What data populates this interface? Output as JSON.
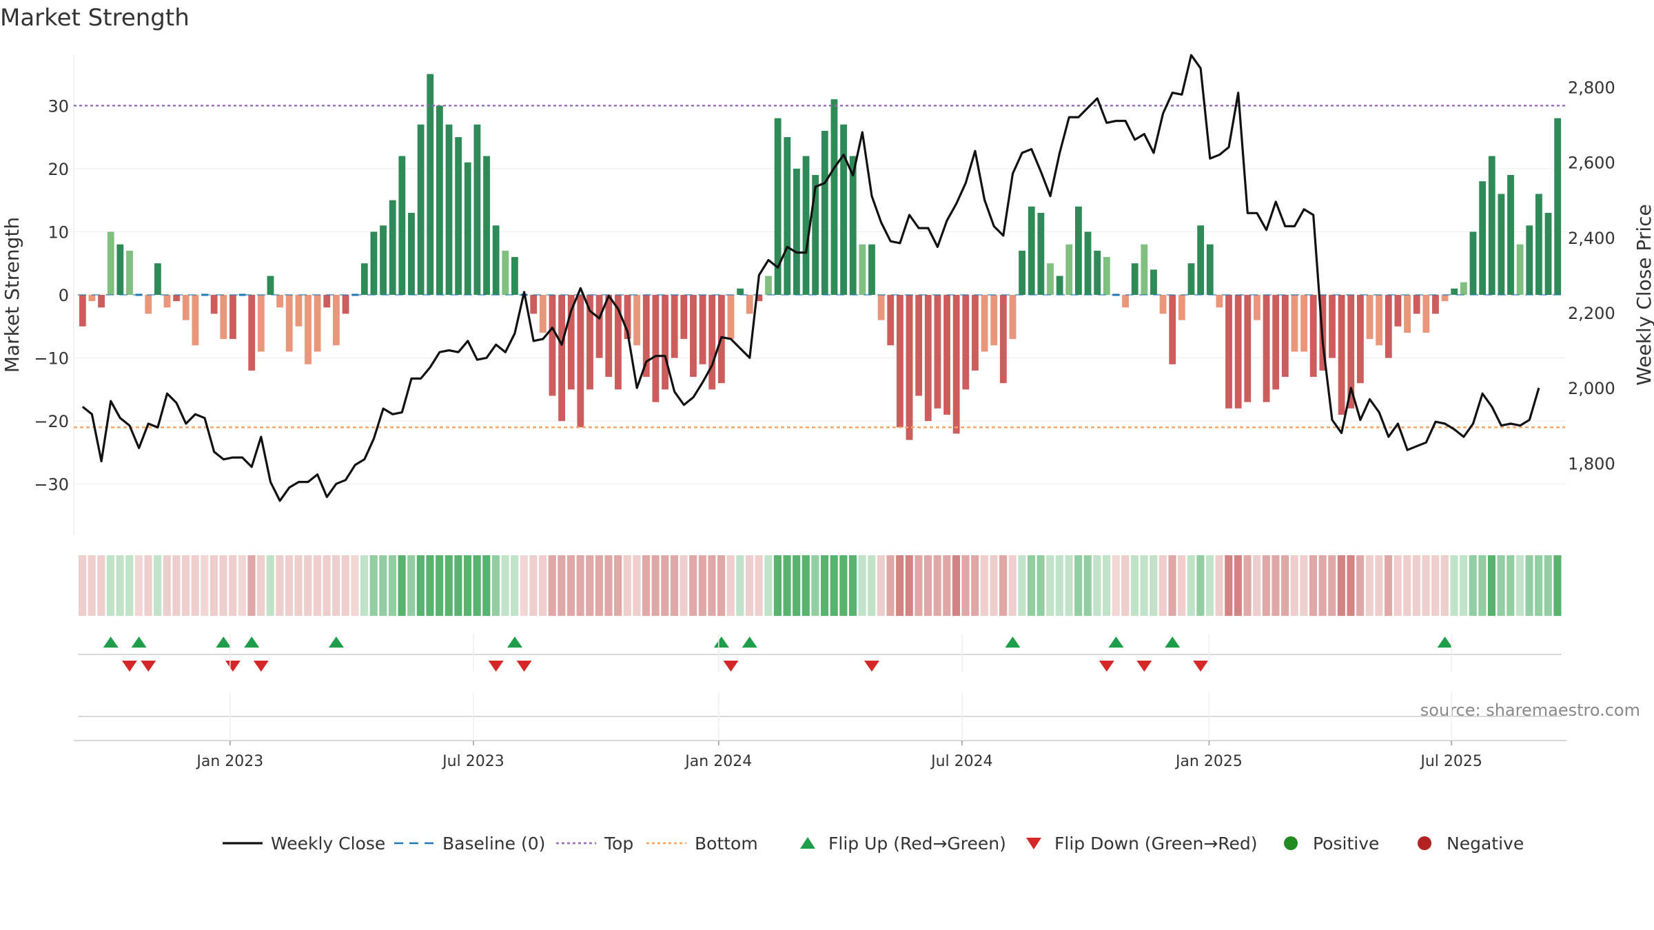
{
  "chart_data": {
    "type": "bar",
    "title": "Market Strength",
    "ylabel_left": "Market Strength",
    "ylabel_right": "Weekly Close Price",
    "ylim_left": [
      -38,
      38
    ],
    "ylim_right": [
      1610,
      2885
    ],
    "left_ticks": [
      30,
      20,
      10,
      0,
      -10,
      -20,
      -30
    ],
    "left_tick_labels": [
      "30",
      "20",
      "10",
      "0",
      "−10",
      "−20",
      "−30"
    ],
    "right_ticks": [
      2800,
      2600,
      2400,
      2200,
      2000,
      1800
    ],
    "right_tick_labels": [
      "2,800",
      "2,600",
      "2,400",
      "2,200",
      "2,000",
      "1,800"
    ],
    "top_level": 30,
    "bottom_level": -21,
    "baseline": 0,
    "x_tick_labels": [
      "Jan 2023",
      "Jul 2023",
      "Jan 2024",
      "Jul 2024",
      "Jan 2025",
      "Jul 2025"
    ],
    "x_tick_weeks": [
      15.7,
      41.6,
      67.7,
      93.6,
      119.9,
      145.7
    ],
    "strength": [
      -5,
      -1,
      -2,
      10,
      8,
      7,
      0,
      -3,
      5,
      -2,
      -1,
      -4,
      -8,
      0,
      -3,
      -7,
      -7,
      0,
      -12,
      -9,
      3,
      -2,
      -9,
      -5,
      -11,
      -9,
      -2,
      -8,
      -3,
      0,
      5,
      10,
      11,
      15,
      22,
      13,
      27,
      35,
      30,
      27,
      25,
      21,
      27,
      22,
      11,
      7,
      6,
      0,
      -3,
      -6,
      -16,
      -20,
      -15,
      -21,
      -15,
      -10,
      -13,
      -15,
      -7,
      -8,
      -13,
      -17,
      -15,
      -10,
      -7,
      -13,
      -11,
      -15,
      -14,
      -7,
      1,
      -3,
      -1,
      3,
      28,
      25,
      20,
      22,
      19,
      26,
      31,
      27,
      22,
      8,
      8,
      -4,
      -8,
      -21,
      -23,
      -16,
      -20,
      -18,
      -19,
      -22,
      -15,
      -12,
      -9,
      -8,
      -14,
      -7,
      7,
      14,
      13,
      5,
      3,
      8,
      14,
      10,
      7,
      6,
      0,
      -2,
      5,
      8,
      4,
      -3,
      -11,
      -4,
      5,
      11,
      8,
      -2,
      -18,
      -18,
      -17,
      -4,
      -17,
      -15,
      -13,
      -9,
      -9,
      -13,
      -12,
      -10,
      -19,
      -18,
      -14,
      -7,
      -8,
      -10,
      -5,
      -6,
      -3,
      -6,
      -3,
      -1,
      1,
      2,
      10,
      18,
      22,
      16,
      19,
      8,
      11,
      16,
      13,
      28
    ],
    "weekly_close": [
      1950,
      1930,
      1805,
      1965,
      1920,
      1900,
      1840,
      1905,
      1895,
      1985,
      1960,
      1905,
      1930,
      1920,
      1830,
      1810,
      1815,
      1815,
      1790,
      1870,
      1750,
      1700,
      1735,
      1750,
      1750,
      1770,
      1710,
      1745,
      1755,
      1795,
      1810,
      1865,
      1945,
      1930,
      1935,
      2025,
      2025,
      2055,
      2095,
      2100,
      2095,
      2125,
      2075,
      2080,
      2115,
      2095,
      2145,
      2255,
      2125,
      2130,
      2160,
      2115,
      2205,
      2265,
      2205,
      2185,
      2245,
      2210,
      2150,
      2000,
      2070,
      2085,
      2085,
      1990,
      1955,
      1975,
      2015,
      2060,
      2135,
      2130,
      2105,
      2080,
      2300,
      2340,
      2320,
      2375,
      2360,
      2360,
      2535,
      2545,
      2585,
      2620,
      2565,
      2680,
      2510,
      2440,
      2390,
      2385,
      2460,
      2425,
      2425,
      2375,
      2445,
      2490,
      2545,
      2630,
      2500,
      2430,
      2405,
      2570,
      2625,
      2635,
      2575,
      2510,
      2625,
      2720,
      2720,
      2745,
      2770,
      2705,
      2710,
      2710,
      2660,
      2675,
      2625,
      2730,
      2785,
      2780,
      2885,
      2850,
      2610,
      2620,
      2640,
      2785,
      2465,
      2465,
      2420,
      2495,
      2430,
      2430,
      2475,
      2460,
      2120,
      1915,
      1880,
      2000,
      1915,
      1970,
      1935,
      1870,
      1905,
      1835,
      1845,
      1855,
      1910,
      1905,
      1890,
      1870,
      1905,
      1985,
      1950,
      1900,
      1905,
      1900,
      1915,
      2000
    ],
    "strip_levels": [
      -1,
      -1,
      -1,
      1,
      1,
      1,
      0,
      -1,
      1,
      -1,
      -1,
      -1,
      -1,
      0,
      -1,
      -1,
      -1,
      0,
      -2,
      -1,
      1,
      -1,
      -1,
      -1,
      -1,
      -1,
      -1,
      -1,
      -1,
      0,
      1,
      2,
      2,
      2,
      3,
      2,
      3,
      3,
      3,
      3,
      3,
      3,
      3,
      3,
      2,
      1,
      1,
      0,
      -1,
      -1,
      -2,
      -2,
      -2,
      -2,
      -2,
      -2,
      -2,
      -2,
      -1,
      -1,
      -2,
      -2,
      -2,
      -2,
      -1,
      -2,
      -2,
      -2,
      -2,
      -1,
      1,
      -1,
      -1,
      1,
      3,
      3,
      3,
      3,
      2,
      3,
      3,
      3,
      3,
      1,
      1,
      -1,
      -2,
      -3,
      -3,
      -2,
      -2,
      -2,
      -2,
      -3,
      -2,
      -2,
      -1,
      -1,
      -2,
      -1,
      1,
      2,
      2,
      1,
      1,
      1,
      2,
      2,
      1,
      1,
      0,
      -1,
      1,
      1,
      1,
      -1,
      -2,
      -1,
      1,
      2,
      1,
      -1,
      -3,
      -3,
      -2,
      -1,
      -2,
      -2,
      -2,
      -1,
      -1,
      -2,
      -2,
      -2,
      -3,
      -3,
      -2,
      -1,
      -1,
      -2,
      -1,
      -1,
      -1,
      -1,
      -1,
      -1,
      1,
      1,
      2,
      2,
      3,
      2,
      2,
      1,
      2,
      2,
      2,
      3
    ],
    "flip_up_weeks": [
      3,
      6,
      15,
      18,
      27,
      46,
      68,
      71,
      99,
      110,
      116,
      145
    ],
    "flip_down_weeks": [
      5,
      7,
      16,
      19,
      44,
      47,
      69,
      84,
      109,
      113,
      119
    ],
    "colors": {
      "strong_positive": "#2e8b57",
      "weak_positive": "#7fbf7f",
      "strong_negative": "#cd5c5c",
      "weak_negative": "#e9967a",
      "line": "#111111",
      "top": "#9467bd",
      "bottom": "#f4a460",
      "baseline": "#1f77b4",
      "flip_up": "#1e9e4a",
      "flip_down": "#d62728",
      "positive": "#228b22",
      "negative": "#b22222"
    },
    "source_note": "source: sharemaestro.com",
    "legend": {
      "placement": "bottom-center",
      "items": [
        {
          "label": "Weekly Close",
          "marker": "solid-line"
        },
        {
          "label": "Baseline (0)",
          "marker": "dashed-line"
        },
        {
          "label": "Top",
          "marker": "dotted-line"
        },
        {
          "label": "Bottom",
          "marker": "dotted-line"
        },
        {
          "label": "Flip Up (Red→Green)",
          "marker": "triangle-up"
        },
        {
          "label": "Flip Down (Green→Red)",
          "marker": "triangle-down"
        },
        {
          "label": "Positive",
          "marker": "dot"
        },
        {
          "label": "Negative",
          "marker": "dot"
        }
      ]
    }
  }
}
